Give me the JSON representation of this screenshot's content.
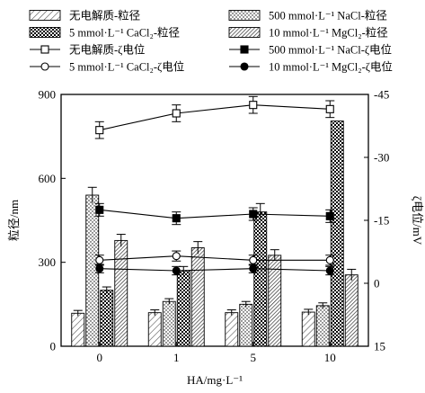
{
  "chart_data": {
    "type": "bar",
    "xlabel": "HA/mg·L⁻¹",
    "ylabel": "粒径/nm",
    "y2label": "ζ电位/mV",
    "categories": [
      "0",
      "1",
      "5",
      "10"
    ],
    "ylim": [
      0,
      900
    ],
    "yticks": [
      "0",
      "300",
      "600",
      "900"
    ],
    "y2lim": [
      15,
      -45
    ],
    "y2ticks": [
      "15",
      "0",
      "-15",
      "-30",
      "-45"
    ],
    "bar_series": [
      {
        "key": "none",
        "name": "无电解质-粒径",
        "pattern": "diag-light",
        "values": [
          118,
          120,
          120,
          122
        ],
        "errors": [
          10,
          10,
          10,
          10
        ]
      },
      {
        "key": "nacl",
        "name": "500 mmol·L⁻¹ NaCl-粒径",
        "pattern": "dots",
        "values": [
          540,
          160,
          150,
          145
        ],
        "errors": [
          28,
          10,
          10,
          10
        ]
      },
      {
        "key": "cacl2",
        "name": "5 mmol·L⁻¹ CaCl₂-粒径",
        "pattern": "checker",
        "values": [
          200,
          270,
          480,
          805
        ],
        "errors": [
          12,
          15,
          30,
          0
        ]
      },
      {
        "key": "mgcl2",
        "name": "10 mmol·L⁻¹ MgCl₂-粒径",
        "pattern": "diag-dense",
        "values": [
          378,
          352,
          325,
          255
        ],
        "errors": [
          22,
          22,
          20,
          20
        ]
      }
    ],
    "line_series": [
      {
        "key": "none-zeta",
        "name": "无电解质-ζ电位",
        "marker": "open-square",
        "values": [
          -36.5,
          -40.5,
          -42.5,
          -41.5
        ],
        "errors": [
          2,
          2,
          2,
          2
        ]
      },
      {
        "key": "cacl2-zeta",
        "name": "5 mmol·L⁻¹ CaCl₂-ζ电位",
        "marker": "open-circle",
        "values": [
          -5.5,
          -6.5,
          -5.5,
          -5.5
        ],
        "errors": [
          1.2,
          1.2,
          1.2,
          1.2
        ]
      },
      {
        "key": "nacl-zeta",
        "name": "500 mmol·L⁻¹ NaCl-ζ电位",
        "marker": "filled-square",
        "values": [
          -17.5,
          -15.5,
          -16.5,
          -16
        ],
        "errors": [
          1.5,
          1.5,
          1.5,
          1.5
        ]
      },
      {
        "key": "mgcl2-zeta",
        "name": "10 mmol·L⁻¹ MgCl₂-ζ电位",
        "marker": "filled-circle",
        "values": [
          -3.5,
          -3,
          -3.5,
          -3
        ],
        "errors": [
          1,
          1,
          1,
          1
        ]
      }
    ],
    "legend_position": "top"
  }
}
